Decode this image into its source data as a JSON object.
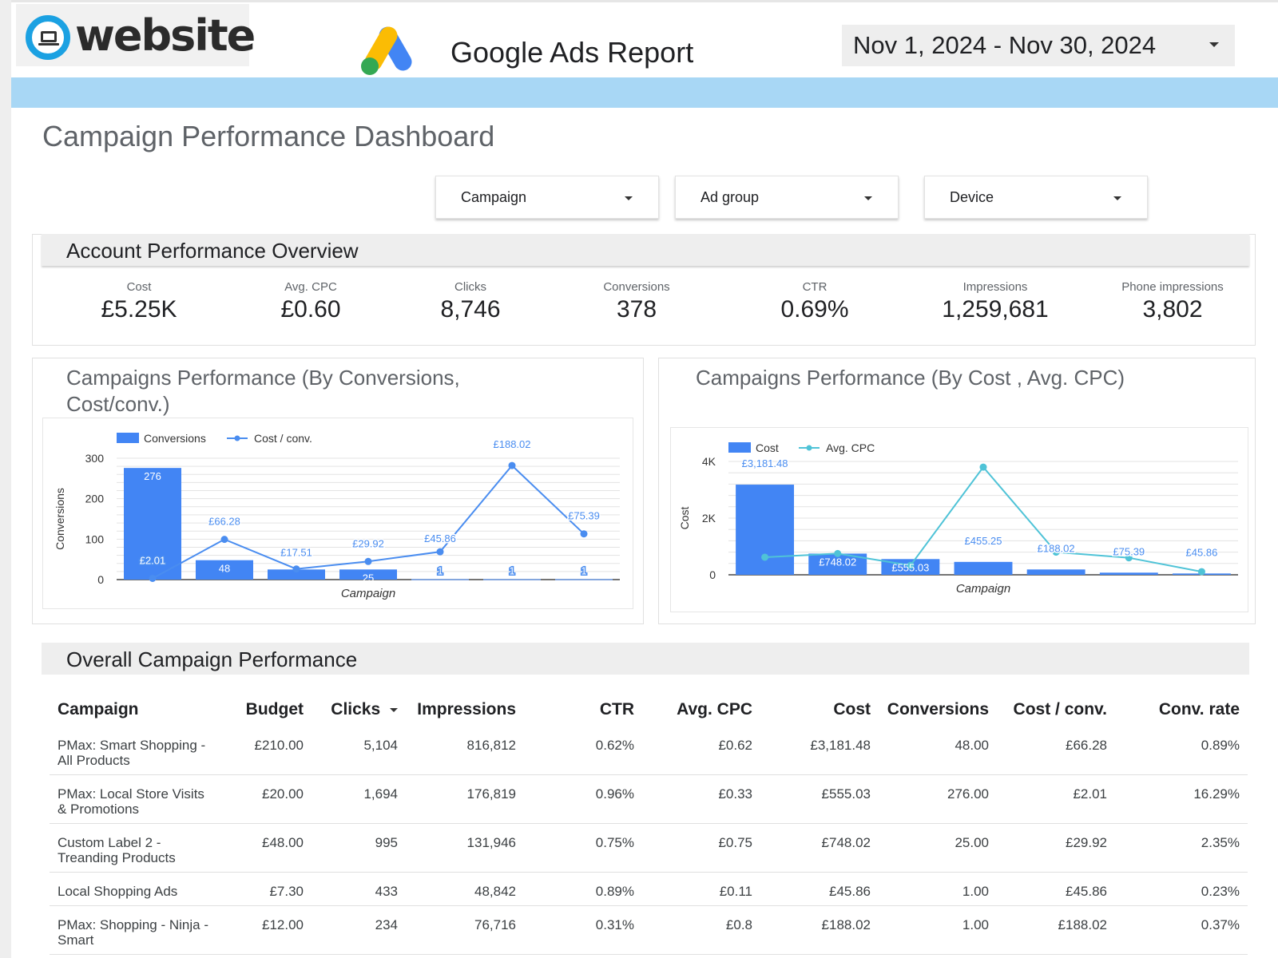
{
  "header": {
    "logo_text": "website",
    "title": "Google Ads Report",
    "date_range": "Nov 1, 2024 - Nov 30, 2024"
  },
  "page_title": "Campaign Performance Dashboard",
  "filters": [
    {
      "label": "Campaign"
    },
    {
      "label": "Ad group"
    },
    {
      "label": "Device"
    }
  ],
  "account_overview": {
    "title": "Account Performance Overview",
    "kpis": [
      {
        "label": "Cost",
        "value": "£5.25K"
      },
      {
        "label": "Avg. CPC",
        "value": "£0.60"
      },
      {
        "label": "Clicks",
        "value": "8,746"
      },
      {
        "label": "Conversions",
        "value": "378"
      },
      {
        "label": "CTR",
        "value": "0.69%"
      },
      {
        "label": "Impressions",
        "value": "1,259,681"
      },
      {
        "label": "Phone impressions",
        "value": "3,802"
      }
    ]
  },
  "colors": {
    "bar_blue": "#4285f4",
    "line_blue": "#4a8df0",
    "line_teal": "#4fc3d7",
    "band": "#a8d7f5"
  },
  "chart_data": [
    {
      "type": "bar",
      "title": "Campaigns Performance (By Conversions, Cost/conv.)",
      "xlabel": "Campaign",
      "ylabel": "Conversions",
      "ylim": [
        0,
        300
      ],
      "yticks": [
        "0",
        "100",
        "200",
        "300"
      ],
      "legend": [
        "Conversions",
        "Cost / conv."
      ],
      "legend_position": "top-left",
      "bars": [
        276,
        48,
        25,
        25,
        1,
        1,
        1
      ],
      "bar_labels": [
        "276",
        "48",
        "",
        "25",
        "1",
        "1",
        "1"
      ],
      "line": [
        2.01,
        66.28,
        17.51,
        29.92,
        45.86,
        188.02,
        75.39
      ],
      "line_labels": [
        "£2.01",
        "£66.28",
        "£17.51",
        "£29.92",
        "£45.86",
        "£188.02",
        "£75.39"
      ],
      "line_max": 200
    },
    {
      "type": "bar",
      "title": "Campaigns Performance (By Cost , Avg. CPC)",
      "xlabel": "Campaign",
      "ylabel": "Cost",
      "ylim": [
        0,
        4000
      ],
      "yticks": [
        "0",
        "2K",
        "4K"
      ],
      "legend": [
        "Cost",
        "Avg. CPC"
      ],
      "legend_position": "top-left",
      "bars": [
        3181.48,
        748.02,
        555.03,
        455.25,
        188.02,
        75.39,
        45.86
      ],
      "bar_labels": [
        "£3,181.48",
        "£748.02",
        "£555.03",
        "£455.25",
        "£188.02",
        "£75.39",
        "£45.86"
      ],
      "line": [
        0.62,
        0.75,
        0.33,
        3.8,
        0.8,
        0.6,
        0.11
      ],
      "line_max": 4.0
    }
  ],
  "campaign_table": {
    "title": "Overall Campaign Performance",
    "columns": [
      "Campaign",
      "Budget",
      "Clicks",
      "Impressions",
      "CTR",
      "Avg. CPC",
      "Cost",
      "Conversions",
      "Cost / conv.",
      "Conv. rate"
    ],
    "rows": [
      [
        "PMax: Smart Shopping - All Products",
        "£210.00",
        "5,104",
        "816,812",
        "0.62%",
        "£0.62",
        "£3,181.48",
        "48.00",
        "£66.28",
        "0.89%"
      ],
      [
        "PMax: Local Store Visits & Promotions",
        "£20.00",
        "1,694",
        "176,819",
        "0.96%",
        "£0.33",
        "£555.03",
        "276.00",
        "£2.01",
        "16.29%"
      ],
      [
        "Custom Label 2 - Treanding Products",
        "£48.00",
        "995",
        "131,946",
        "0.75%",
        "£0.75",
        "£748.02",
        "25.00",
        "£29.92",
        "2.35%"
      ],
      [
        "Local Shopping Ads",
        "£7.30",
        "433",
        "48,842",
        "0.89%",
        "£0.11",
        "£45.86",
        "1.00",
        "£45.86",
        "0.23%"
      ],
      [
        "PMax: Shopping - Ninja - Smart",
        "£12.00",
        "234",
        "76,716",
        "0.31%",
        "£0.8",
        "£188.02",
        "1.00",
        "£188.02",
        "0.37%"
      ]
    ]
  }
}
